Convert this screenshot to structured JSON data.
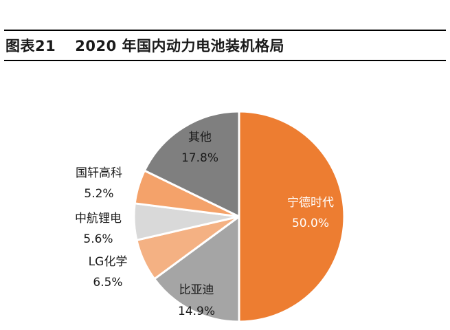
{
  "figure": {
    "number": "图表21",
    "title": "2020 年国内动力电池装机格局"
  },
  "chart_data": {
    "type": "pie",
    "title": "2020 年国内动力电池装机格局",
    "unit": "%",
    "start": "12 o'clock, clockwise",
    "slices": [
      {
        "name": "宁德时代",
        "value": 50.0,
        "label": "50.0%",
        "color": "#ED7D31"
      },
      {
        "name": "比亚迪",
        "value": 14.9,
        "label": "14.9%",
        "color": "#A5A5A5"
      },
      {
        "name": "LG化学",
        "value": 6.5,
        "label": "6.5%",
        "color": "#F4B183"
      },
      {
        "name": "中航锂电",
        "value": 5.6,
        "label": "5.6%",
        "color": "#D9D9D9"
      },
      {
        "name": "国轩高科",
        "value": 5.2,
        "label": "5.2%",
        "color": "#F4A26A"
      },
      {
        "name": "其他",
        "value": 17.8,
        "label": "17.8%",
        "color": "#7F7F7F"
      }
    ]
  }
}
